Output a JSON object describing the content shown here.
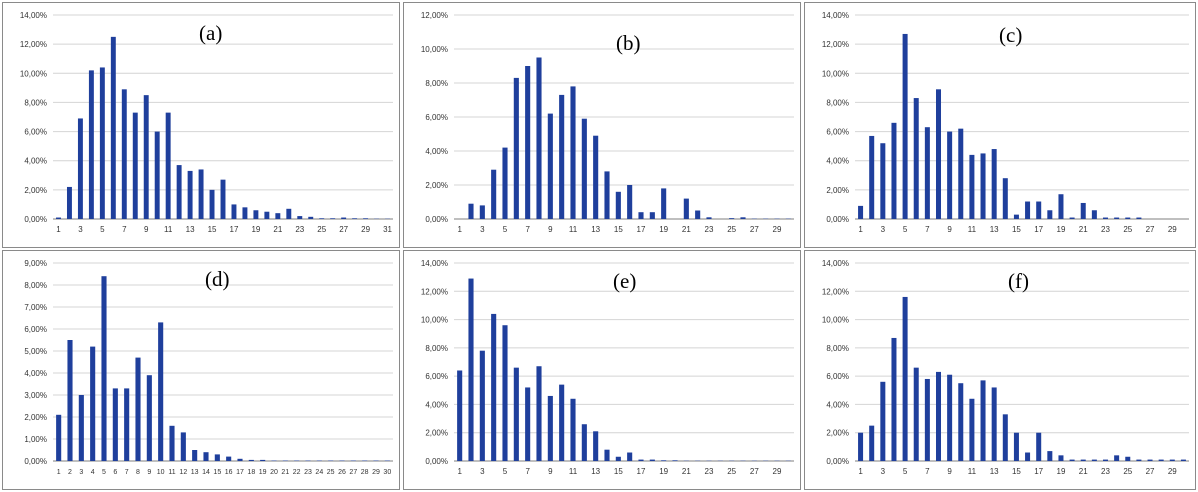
{
  "colors": {
    "bar": "#1f3f9c",
    "grid": "#d4d4d4",
    "axis": "#7f7f7f",
    "tick_text": "#333333"
  },
  "chart_data": [
    {
      "type": "bar",
      "title": "(a)",
      "grid": true,
      "legend": "none",
      "ylim": [
        0,
        14
      ],
      "yticks": [
        "0,00%",
        "2,00%",
        "4,00%",
        "6,00%",
        "8,00%",
        "10,00%",
        "12,00%",
        "14,00%"
      ],
      "x": [
        1,
        2,
        3,
        4,
        5,
        6,
        7,
        8,
        9,
        10,
        11,
        12,
        13,
        14,
        15,
        16,
        17,
        18,
        19,
        20,
        21,
        22,
        23,
        24,
        25,
        26,
        27,
        28,
        29,
        30,
        31
      ],
      "xticks": [
        "1",
        "3",
        "5",
        "7",
        "9",
        "11",
        "13",
        "15",
        "17",
        "19",
        "21",
        "23",
        "25",
        "27",
        "29",
        "31"
      ],
      "values": [
        0.1,
        2.2,
        6.9,
        10.2,
        10.4,
        12.5,
        8.9,
        7.3,
        8.5,
        6.0,
        7.3,
        3.7,
        3.3,
        3.4,
        2.0,
        2.7,
        1.0,
        0.8,
        0.6,
        0.5,
        0.4,
        0.7,
        0.2,
        0.15,
        0.05,
        0.05,
        0.1,
        0.05,
        0.05,
        0.02,
        0.02
      ]
    },
    {
      "type": "bar",
      "title": "(b)",
      "grid": true,
      "legend": "none",
      "ylim": [
        0,
        12
      ],
      "yticks": [
        "0,00%",
        "2,00%",
        "4,00%",
        "6,00%",
        "8,00%",
        "10,00%",
        "12,00%"
      ],
      "x": [
        1,
        2,
        3,
        4,
        5,
        6,
        7,
        8,
        9,
        10,
        11,
        12,
        13,
        14,
        15,
        16,
        17,
        18,
        19,
        20,
        21,
        22,
        23,
        24,
        25,
        26,
        27,
        28,
        29,
        30
      ],
      "xticks": [
        "1",
        "3",
        "5",
        "7",
        "9",
        "11",
        "13",
        "15",
        "17",
        "19",
        "21",
        "23",
        "25",
        "27",
        "29"
      ],
      "values": [
        0,
        0.9,
        0.8,
        2.9,
        4.2,
        8.3,
        9.0,
        9.5,
        6.2,
        7.3,
        7.8,
        5.9,
        4.9,
        2.8,
        1.6,
        2.0,
        0.4,
        0.4,
        1.8,
        0,
        1.2,
        0.5,
        0.1,
        0,
        0.05,
        0.1,
        0.02,
        0.02,
        0.02,
        0.02
      ]
    },
    {
      "type": "bar",
      "title": "(c)",
      "grid": true,
      "legend": "none",
      "ylim": [
        0,
        14
      ],
      "yticks": [
        "0,00%",
        "2,00%",
        "4,00%",
        "6,00%",
        "8,00%",
        "10,00%",
        "12,00%",
        "14,00%"
      ],
      "x": [
        1,
        2,
        3,
        4,
        5,
        6,
        7,
        8,
        9,
        10,
        11,
        12,
        13,
        14,
        15,
        16,
        17,
        18,
        19,
        20,
        21,
        22,
        23,
        24,
        25,
        26,
        27,
        28,
        29,
        30
      ],
      "xticks": [
        "1",
        "3",
        "5",
        "7",
        "9",
        "11",
        "13",
        "15",
        "17",
        "19",
        "21",
        "23",
        "25",
        "27",
        "29"
      ],
      "values": [
        0.9,
        5.7,
        5.2,
        6.6,
        12.7,
        8.3,
        6.3,
        8.9,
        6.0,
        6.2,
        4.4,
        4.5,
        4.8,
        2.8,
        0.3,
        1.2,
        1.2,
        0.6,
        1.7,
        0.1,
        1.1,
        0.6,
        0.1,
        0.1,
        0.1,
        0.1,
        0,
        0,
        0,
        0
      ]
    },
    {
      "type": "bar",
      "title": "(d)",
      "grid": true,
      "legend": "none",
      "ylim": [
        0,
        9
      ],
      "yticks": [
        "0,00%",
        "1,00%",
        "2,00%",
        "3,00%",
        "4,00%",
        "5,00%",
        "6,00%",
        "7,00%",
        "8,00%",
        "9,00%"
      ],
      "x": [
        1,
        2,
        3,
        4,
        5,
        6,
        7,
        8,
        9,
        10,
        11,
        12,
        13,
        14,
        15,
        16,
        17,
        18,
        19,
        20,
        21,
        22,
        23,
        24,
        25,
        26,
        27,
        28,
        29,
        30
      ],
      "xticks": [
        "1",
        "2",
        "3",
        "4",
        "5",
        "6",
        "7",
        "8",
        "9",
        "10",
        "11",
        "12",
        "13",
        "14",
        "15",
        "16",
        "17",
        "18",
        "19",
        "20",
        "21",
        "22",
        "23",
        "24",
        "25",
        "26",
        "27",
        "28",
        "29",
        "30"
      ],
      "xtick_text": "1 2 3 4 5 6 7 8 9 10111213141516171819202122232425262728293​0",
      "values": [
        2.1,
        5.5,
        3.0,
        5.2,
        8.4,
        3.3,
        3.3,
        4.7,
        3.9,
        6.3,
        1.6,
        1.3,
        0.5,
        0.4,
        0.3,
        0.2,
        0.1,
        0.05,
        0.05,
        0.02,
        0.02,
        0.02,
        0.02,
        0.02,
        0.02,
        0.02,
        0.02,
        0.02,
        0.02,
        0.02
      ]
    },
    {
      "type": "bar",
      "title": "(e)",
      "grid": true,
      "legend": "none",
      "ylim": [
        0,
        14
      ],
      "yticks": [
        "0,00%",
        "2,00%",
        "4,00%",
        "6,00%",
        "8,00%",
        "10,00%",
        "12,00%",
        "14,00%"
      ],
      "x": [
        1,
        2,
        3,
        4,
        5,
        6,
        7,
        8,
        9,
        10,
        11,
        12,
        13,
        14,
        15,
        16,
        17,
        18,
        19,
        20,
        21,
        22,
        23,
        24,
        25,
        26,
        27,
        28,
        29,
        30
      ],
      "xticks": [
        "1",
        "3",
        "5",
        "7",
        "9",
        "11",
        "13",
        "15",
        "17",
        "19",
        "21",
        "23",
        "25",
        "27",
        "29"
      ],
      "values": [
        6.4,
        12.9,
        7.8,
        10.4,
        9.6,
        6.6,
        5.2,
        6.7,
        4.6,
        5.4,
        4.4,
        2.6,
        2.1,
        0.8,
        0.3,
        0.6,
        0.1,
        0.1,
        0.05,
        0.05,
        0.02,
        0.02,
        0.02,
        0.02,
        0.02,
        0.02,
        0.02,
        0.02,
        0.02,
        0.02
      ]
    },
    {
      "type": "bar",
      "title": "(f)",
      "grid": true,
      "legend": "none",
      "ylim": [
        0,
        14
      ],
      "yticks": [
        "0,00%",
        "2,00%",
        "4,00%",
        "6,00%",
        "8,00%",
        "10,00%",
        "12,00%",
        "14,00%"
      ],
      "x": [
        1,
        2,
        3,
        4,
        5,
        6,
        7,
        8,
        9,
        10,
        11,
        12,
        13,
        14,
        15,
        16,
        17,
        18,
        19,
        20,
        21,
        22,
        23,
        24,
        25,
        26,
        27,
        28,
        29,
        30
      ],
      "xticks": [
        "1",
        "3",
        "5",
        "7",
        "9",
        "11",
        "13",
        "15",
        "17",
        "19",
        "21",
        "23",
        "25",
        "27",
        "29"
      ],
      "values": [
        2.0,
        2.5,
        5.6,
        8.7,
        11.6,
        6.6,
        5.8,
        6.3,
        6.1,
        5.5,
        4.4,
        5.7,
        5.2,
        3.3,
        2.0,
        0.6,
        2.0,
        0.7,
        0.4,
        0.1,
        0.1,
        0.1,
        0.1,
        0.4,
        0.3,
        0.1,
        0.1,
        0.1,
        0.1,
        0.1
      ]
    }
  ]
}
